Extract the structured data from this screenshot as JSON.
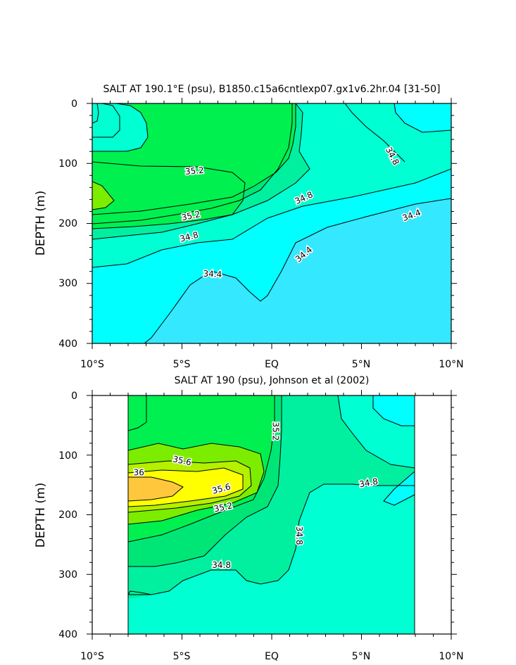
{
  "chart_data": [
    {
      "type": "contour",
      "title": "SALT AT 190.1°E (psu), B1850.c15a6cntlexp07.gx1v6.2hr.04 [31-50]",
      "ylabel": "DEPTH (m)",
      "xlabel": "",
      "x_ticks": [
        "10°S",
        "5°S",
        "EQ",
        "5°N",
        "10°N"
      ],
      "x_tick_values": [
        -10,
        -5,
        0,
        5,
        10
      ],
      "y_ticks": [
        "0",
        "100",
        "200",
        "300",
        "400"
      ],
      "y_tick_values": [
        0,
        100,
        200,
        300,
        400
      ],
      "xlim": [
        -10,
        10
      ],
      "ylim": [
        0,
        400
      ],
      "data_extent": [
        -10,
        10
      ],
      "contour_interval": 0.2,
      "contour_labels": [
        {
          "text": "35.2",
          "x": -4.3,
          "y": 113,
          "angle": -5
        },
        {
          "text": "35.2",
          "x": -4.5,
          "y": 188,
          "angle": -12
        },
        {
          "text": "34.8",
          "x": -4.6,
          "y": 223,
          "angle": -14
        },
        {
          "text": "34.8",
          "x": 1.8,
          "y": 158,
          "angle": -25
        },
        {
          "text": "34.8",
          "x": 6.7,
          "y": 88,
          "angle": 62
        },
        {
          "text": "34.4",
          "x": -3.3,
          "y": 285,
          "angle": 3
        },
        {
          "text": "34.4",
          "x": 1.8,
          "y": 252,
          "angle": -40
        },
        {
          "text": "34.4",
          "x": 7.8,
          "y": 187,
          "angle": -20
        }
      ],
      "fill_levels": [
        {
          "level": "<34.4",
          "color": "#33e8ff"
        },
        {
          "level": "34.4-34.6",
          "color": "#00ffff"
        },
        {
          "level": "34.6-34.8",
          "color": "#00ffd2"
        },
        {
          "level": "34.8-35.0",
          "color": "#00f0a0"
        },
        {
          "level": "35.0-35.2",
          "color": "#00e676"
        },
        {
          "level": "35.2-35.4",
          "color": "#00f050"
        },
        {
          "level": "35.4-35.6",
          "color": "#7ded00"
        }
      ]
    },
    {
      "type": "contour",
      "title": "SALT AT 190 (psu), Johnson et al (2002)",
      "ylabel": "DEPTH (m)",
      "xlabel": "",
      "x_ticks": [
        "10°S",
        "5°S",
        "EQ",
        "5°N",
        "10°N"
      ],
      "x_tick_values": [
        -10,
        -5,
        0,
        5,
        10
      ],
      "y_ticks": [
        "0",
        "100",
        "200",
        "300",
        "400"
      ],
      "y_tick_values": [
        0,
        100,
        200,
        300,
        400
      ],
      "xlim": [
        -10,
        10
      ],
      "ylim": [
        0,
        400
      ],
      "data_extent": [
        -8,
        8
      ],
      "contour_interval": 0.2,
      "contour_labels": [
        {
          "text": "35.2",
          "x": 0.2,
          "y": 60,
          "angle": 90
        },
        {
          "text": "35.6",
          "x": -5.0,
          "y": 110,
          "angle": 12
        },
        {
          "text": "36",
          "x": -7.4,
          "y": 130,
          "angle": 0
        },
        {
          "text": "35.6",
          "x": -2.8,
          "y": 157,
          "angle": -15
        },
        {
          "text": "35.2",
          "x": -2.7,
          "y": 188,
          "angle": -12
        },
        {
          "text": "34.8",
          "x": 5.4,
          "y": 147,
          "angle": -10
        },
        {
          "text": "34.8",
          "x": 1.5,
          "y": 235,
          "angle": 90
        },
        {
          "text": "34.8",
          "x": -2.8,
          "y": 285,
          "angle": 0
        }
      ],
      "fill_levels": [
        {
          "level": "34.4-34.6",
          "color": "#00ffff"
        },
        {
          "level": "34.6-34.8",
          "color": "#00ffd2"
        },
        {
          "level": "34.8-35.0",
          "color": "#00f0a0"
        },
        {
          "level": "35.0-35.2",
          "color": "#00e676"
        },
        {
          "level": "35.2-35.4",
          "color": "#00f050"
        },
        {
          "level": "35.4-35.6",
          "color": "#7ded00"
        },
        {
          "level": "35.6-35.8",
          "color": "#b4f000"
        },
        {
          "level": "35.8-36.0",
          "color": "#ffff00"
        },
        {
          "level": ">36.0",
          "color": "#ffc83c"
        }
      ]
    }
  ]
}
